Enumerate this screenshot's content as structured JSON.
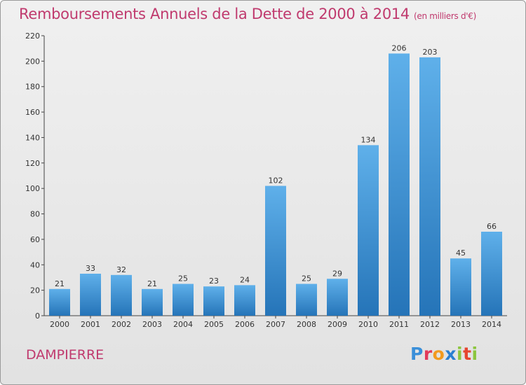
{
  "header": {
    "title": "Remboursements Annuels de la Dette de 2000 à 2014",
    "unit": "(en milliers d'€)"
  },
  "footer": {
    "commune": "DAMPIERRE",
    "brand_letters": [
      "P",
      "r",
      "o",
      "x",
      "i",
      "t",
      "i"
    ],
    "brand_colors": [
      "#3a8fd9",
      "#e23a5a",
      "#f29a1f",
      "#2a7fd0",
      "#8cc63e",
      "#e6452f",
      "#8cc63e"
    ]
  },
  "colors": {
    "title": "#c03a6e",
    "bar_top": "#5fb0ea",
    "bar_bottom": "#2574b8"
  },
  "chart_data": {
    "type": "bar",
    "title": "Remboursements Annuels de la Dette de 2000 à 2014",
    "subtitle": "(en milliers d'€)",
    "xlabel": "",
    "ylabel": "",
    "categories": [
      "2000",
      "2001",
      "2002",
      "2003",
      "2004",
      "2005",
      "2006",
      "2007",
      "2008",
      "2009",
      "2010",
      "2011",
      "2012",
      "2013",
      "2014"
    ],
    "values": [
      21,
      33,
      32,
      21,
      25,
      23,
      24,
      102,
      25,
      29,
      134,
      206,
      203,
      45,
      66
    ],
    "ylim": [
      0,
      220
    ],
    "yticks": [
      0,
      20,
      40,
      60,
      80,
      100,
      120,
      140,
      160,
      180,
      200,
      220
    ],
    "grid": false,
    "legend": "none"
  }
}
